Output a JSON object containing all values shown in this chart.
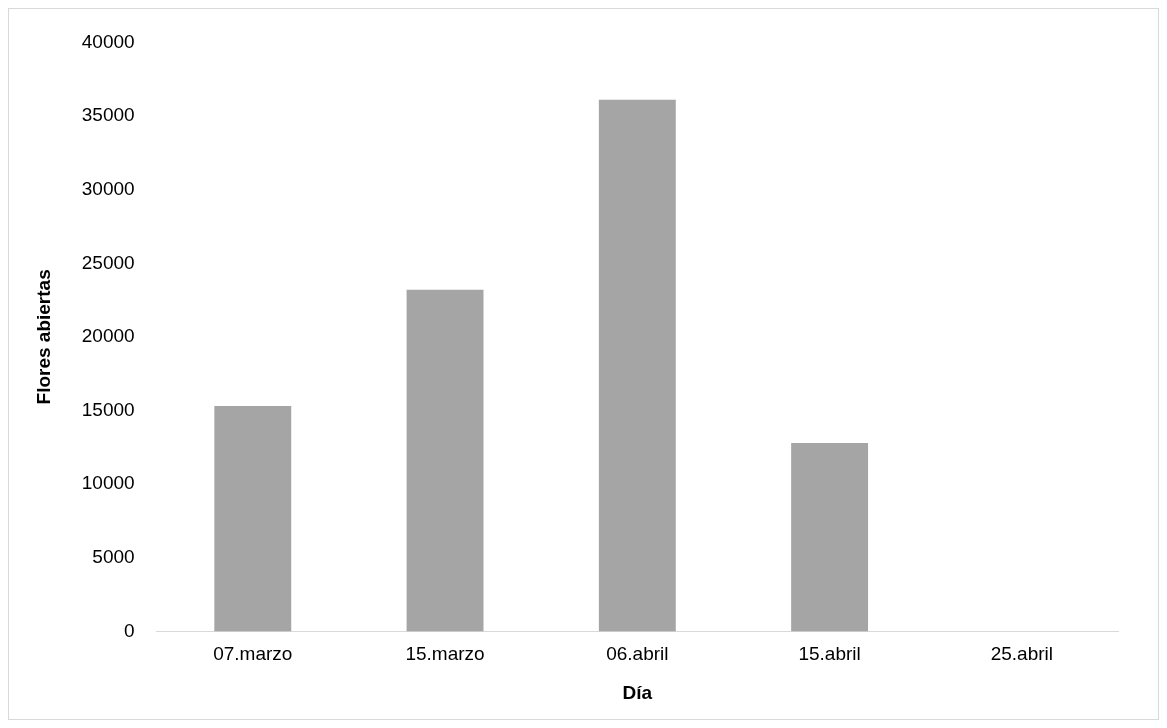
{
  "chart_data": {
    "type": "bar",
    "xlabel": "Día",
    "ylabel": "Flores abiertas",
    "categories": [
      "07.marzo",
      "15.marzo",
      "06.abril",
      "15.abril",
      "25.abril"
    ],
    "values": [
      15300,
      23200,
      36100,
      12800,
      0
    ],
    "color": "#a5a5a5",
    "ylim": [
      0,
      40000
    ],
    "yticks": [
      0,
      5000,
      10000,
      15000,
      20000,
      25000,
      30000,
      35000,
      40000
    ],
    "grid": false,
    "legend": false
  }
}
